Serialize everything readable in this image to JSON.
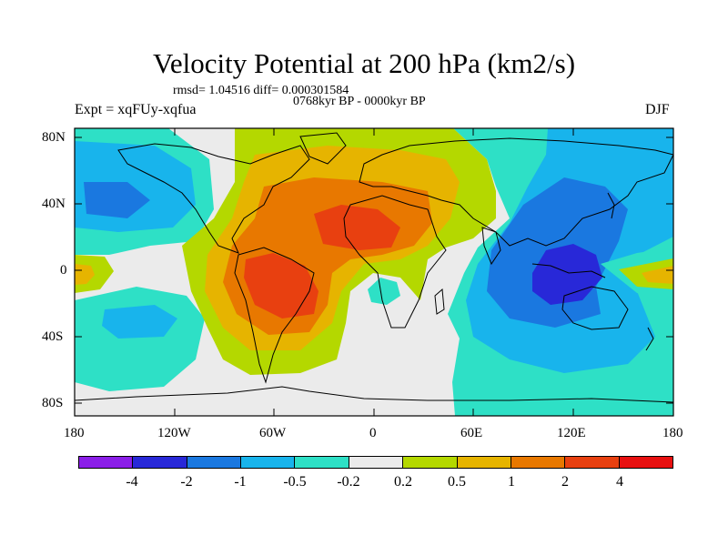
{
  "title": "Velocity Potential at 200 hPa (km2/s)",
  "stats": "rmsd= 1.04516 diff= 0.000301584",
  "period": "0768kyr BP - 0000kyr BP",
  "experiment": "Expt = xqFUy-xqfua",
  "season": "DJF",
  "y_ticks": [
    "80N",
    "40N",
    "0",
    "40S",
    "80S"
  ],
  "x_ticks": [
    "180",
    "120W",
    "60W",
    "0",
    "60E",
    "120E",
    "180"
  ],
  "colorbar": {
    "labels": [
      "-4",
      "-2",
      "-1",
      "-0.5",
      "-0.2",
      "0.2",
      "0.5",
      "1",
      "2",
      "4"
    ],
    "colors": [
      "#8b1ee8",
      "#2828d8",
      "#1a78e0",
      "#18b4ec",
      "#2ee0c6",
      "#ebebeb",
      "#b4d800",
      "#e6b400",
      "#e87800",
      "#e84010",
      "#e81010"
    ]
  },
  "chart_data": {
    "type": "heatmap",
    "title": "Velocity Potential at 200 hPa (km2/s)",
    "xlim": [
      -180,
      180
    ],
    "ylim": [
      -90,
      90
    ],
    "levels": [
      -4,
      -2,
      -1,
      -0.5,
      -0.2,
      0.2,
      0.5,
      1,
      2,
      4
    ],
    "features": [
      {
        "sign": "positive",
        "center_lon": -55,
        "center_lat": -10,
        "peak_level": 4
      },
      {
        "sign": "positive",
        "center_lon": -15,
        "center_lat": 25,
        "peak_level": 2
      },
      {
        "sign": "negative",
        "center_lon": 120,
        "center_lat": -5,
        "peak_level": -4
      },
      {
        "sign": "negative",
        "center_lon": -160,
        "center_lat": 20,
        "peak_level": -1
      }
    ]
  }
}
